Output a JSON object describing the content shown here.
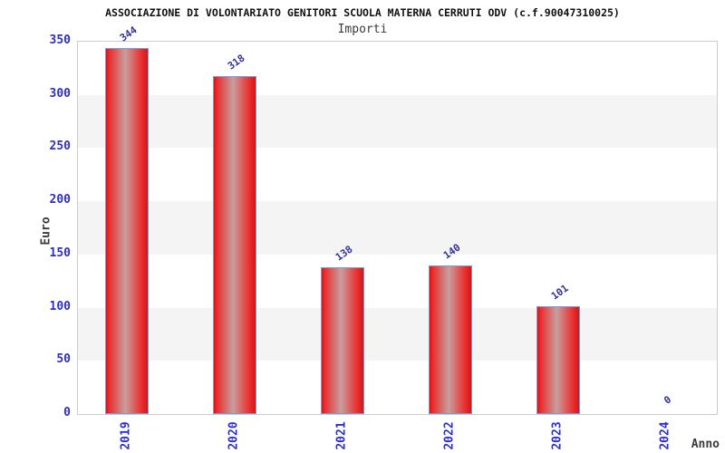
{
  "chart_data": {
    "type": "bar",
    "title": "ASSOCIAZIONE DI VOLONTARIATO GENITORI SCUOLA MATERNA CERRUTI ODV (c.f.90047310025)",
    "subtitle": "Importi",
    "xlabel": "Anno",
    "ylabel": "Euro",
    "categories": [
      "2019",
      "2020",
      "2021",
      "2022",
      "2023",
      "2024"
    ],
    "values": [
      344,
      318,
      138,
      140,
      101,
      0
    ],
    "value_labels": [
      "344",
      "318",
      "138",
      "140",
      "101",
      "0"
    ],
    "ylim": [
      0,
      350
    ],
    "ytick_interval": 50,
    "yticks": [
      0,
      50,
      100,
      150,
      200,
      250,
      300,
      350
    ],
    "legend": "none",
    "grid": "alternating-horizontal-bands",
    "colors": {
      "bar_fill": "#e01212",
      "bar_highlight": "#c89e9e",
      "bar_border": "#70a0e0",
      "tick_label": "#2d2dcc",
      "value_label": "#333399",
      "band_gray": "#f4f4f4",
      "plot_border": "#cccccc",
      "title": "#111111",
      "axis_label": "#3a3a3a",
      "background": "#ffffff"
    }
  }
}
